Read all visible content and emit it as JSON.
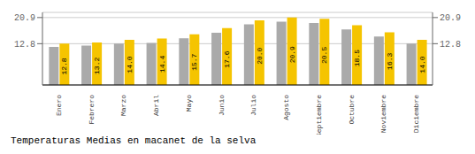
{
  "chart_data": {
    "type": "bar",
    "title": "Temperaturas Medias en macanet de la selva",
    "categories": [
      "Enero",
      "Febrero",
      "Marzo",
      "Abril",
      "Mayo",
      "Junio",
      "Julio",
      "Agosto",
      "Septiembre",
      "Octubre",
      "Noviembre",
      "Diciembre"
    ],
    "series": [
      {
        "color": "#AAAAAA",
        "values": [
          11.8,
          12.2,
          12.8,
          13.0,
          14.5,
          16.2,
          18.8,
          19.6,
          19.2,
          17.2,
          15.0,
          12.8
        ]
      },
      {
        "color": "#F5C400",
        "values": [
          12.8,
          13.2,
          14.0,
          14.4,
          15.7,
          17.6,
          20.0,
          20.9,
          20.5,
          18.5,
          16.3,
          14.0
        ],
        "data_labels": true,
        "value_labels": [
          "12.8",
          "13.2",
          "14.0",
          "14.4",
          "15.7",
          "17.6",
          "20.0",
          "20.9",
          "20.5",
          "18.5",
          "16.3",
          "14.0"
        ]
      }
    ],
    "ylim": [
      0,
      22.5
    ],
    "yticks": [
      12.8,
      20.9
    ],
    "y2lim": [
      0,
      22.5
    ],
    "y2ticks": [
      12.8,
      20.9
    ],
    "grid": true
  }
}
